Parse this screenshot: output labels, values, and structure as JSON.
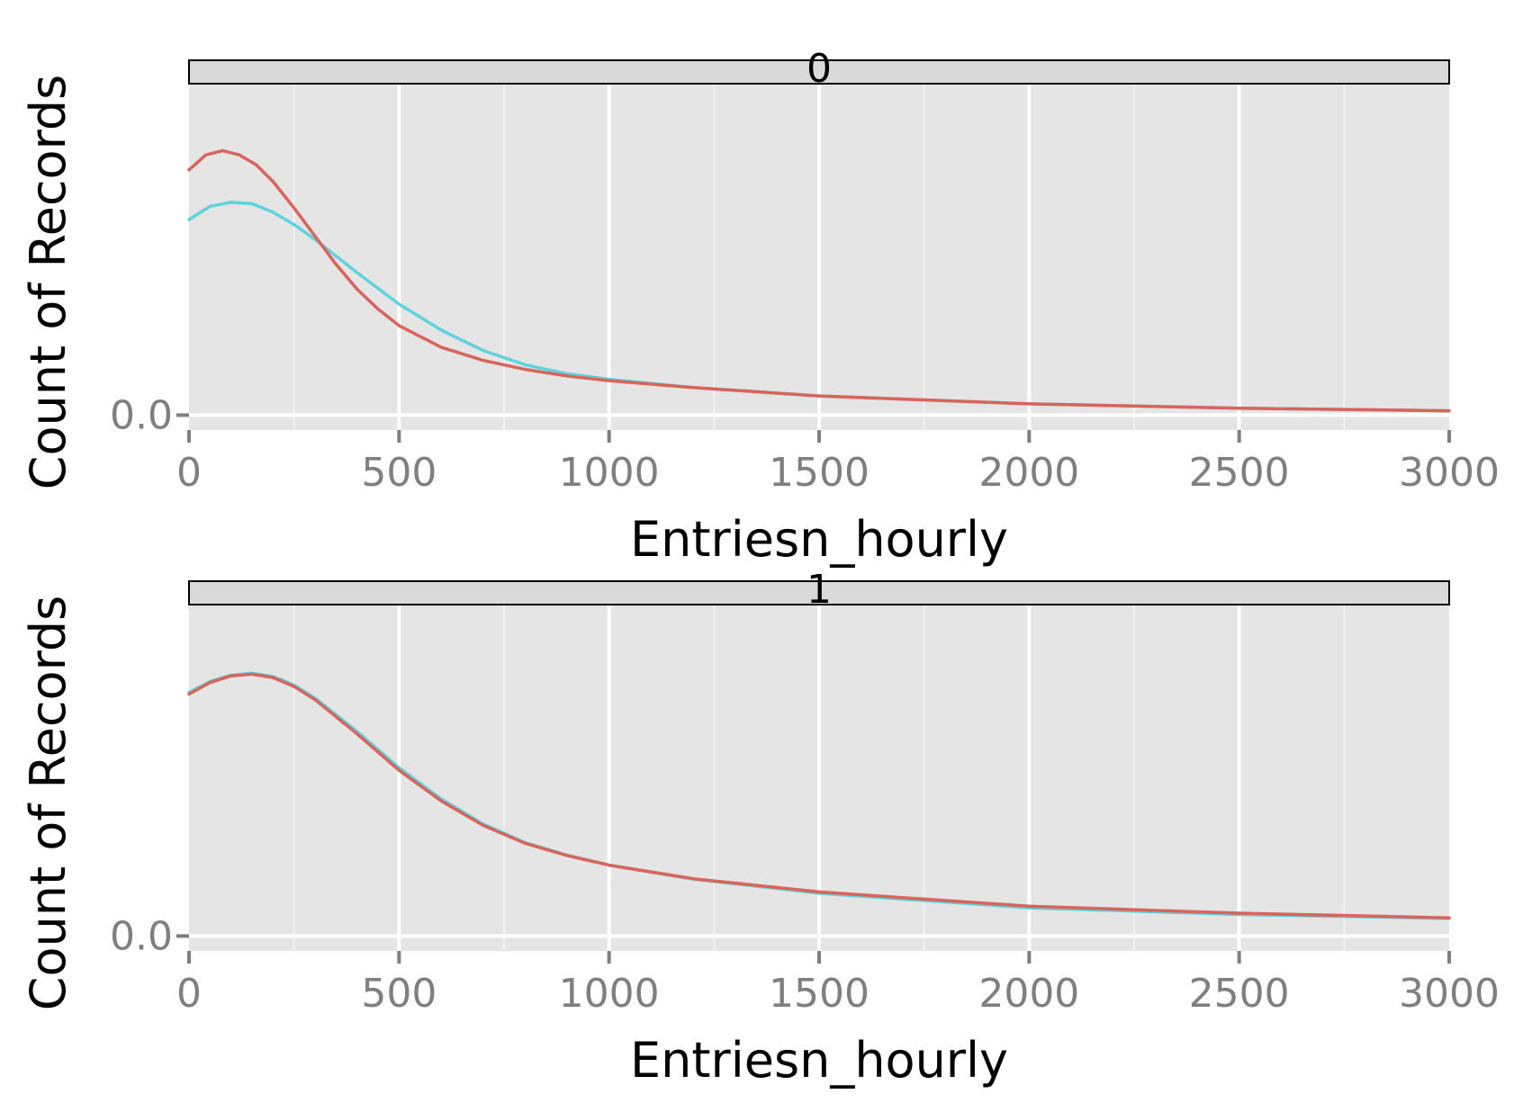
{
  "chart_data": {
    "type": "line",
    "colors": {
      "series_red": "#d8645c",
      "series_cyan": "#5fd3dc",
      "panel_background": "#e5e5e5",
      "strip_background": "#d9d9d9"
    },
    "grid": true,
    "xlim": [
      0,
      3000
    ],
    "x_ticks": [
      "0",
      "500",
      "1000",
      "1500",
      "2000",
      "2500",
      "3000"
    ],
    "x_tick_values": [
      0,
      500,
      1000,
      1500,
      2000,
      2500,
      3000
    ],
    "y_ticks": [
      "0.0"
    ],
    "panels": [
      {
        "strip_label": "0",
        "xlabel": "Entriesn_hourly",
        "ylabel": "Count of Records",
        "ylim": [
          -4.5e-05,
          0.001
        ],
        "series": [
          {
            "color": "#5fd3dc",
            "x": [
              0,
              50,
              100,
              150,
              200,
              250,
              300,
              400,
              500,
              600,
              700,
              800,
              900,
              1000,
              1200,
              1500,
              2000,
              2500,
              3000
            ],
            "y": [
              0.00059,
              0.00063,
              0.000642,
              0.000638,
              0.000612,
              0.000575,
              0.00053,
              0.00043,
              0.000335,
              0.000257,
              0.000195,
              0.000152,
              0.000125,
              0.000108,
              8.3e-05,
              5.8e-05,
              3.4e-05,
              2.1e-05,
              1.3e-05
            ]
          },
          {
            "color": "#d8645c",
            "x": [
              0,
              40,
              80,
              120,
              160,
              200,
              250,
              300,
              350,
              400,
              450,
              500,
              600,
              700,
              800,
              900,
              1000,
              1200,
              1500,
              2000,
              2500,
              3000
            ],
            "y": [
              0.00074,
              0.000785,
              0.000798,
              0.000785,
              0.000755,
              0.000705,
              0.000625,
              0.00054,
              0.000455,
              0.00038,
              0.00032,
              0.00027,
              0.000205,
              0.000165,
              0.000138,
              0.000118,
              0.000104,
              8.3e-05,
              5.8e-05,
              3.4e-05,
              2.1e-05,
              1.3e-05
            ]
          }
        ]
      },
      {
        "strip_label": "1",
        "xlabel": "Entriesn_hourly",
        "ylabel": "Count of Records",
        "ylim": [
          -4.5e-05,
          0.001
        ],
        "series": [
          {
            "color": "#5fd3dc",
            "x": [
              0,
              50,
              100,
              150,
              200,
              250,
              300,
              400,
              500,
              600,
              700,
              800,
              900,
              1000,
              1200,
              1500,
              2000,
              2500,
              3000
            ],
            "y": [
              0.000735,
              0.000768,
              0.000787,
              0.000793,
              0.000783,
              0.000757,
              0.000718,
              0.000617,
              0.000508,
              0.000414,
              0.000338,
              0.000282,
              0.000244,
              0.000214,
              0.000172,
              0.000129,
              8.5e-05,
              6.5e-05,
              5.3e-05
            ]
          },
          {
            "color": "#d8645c",
            "x": [
              0,
              50,
              100,
              150,
              200,
              250,
              300,
              400,
              500,
              600,
              700,
              800,
              900,
              1000,
              1200,
              1500,
              2000,
              2500,
              3000
            ],
            "y": [
              0.00073,
              0.000765,
              0.000785,
              0.00079,
              0.00078,
              0.000753,
              0.000713,
              0.00061,
              0.0005,
              0.000408,
              0.000334,
              0.00028,
              0.000243,
              0.000214,
              0.000173,
              0.000133,
              9e-05,
              6.9e-05,
              5.5e-05
            ]
          }
        ]
      }
    ]
  }
}
